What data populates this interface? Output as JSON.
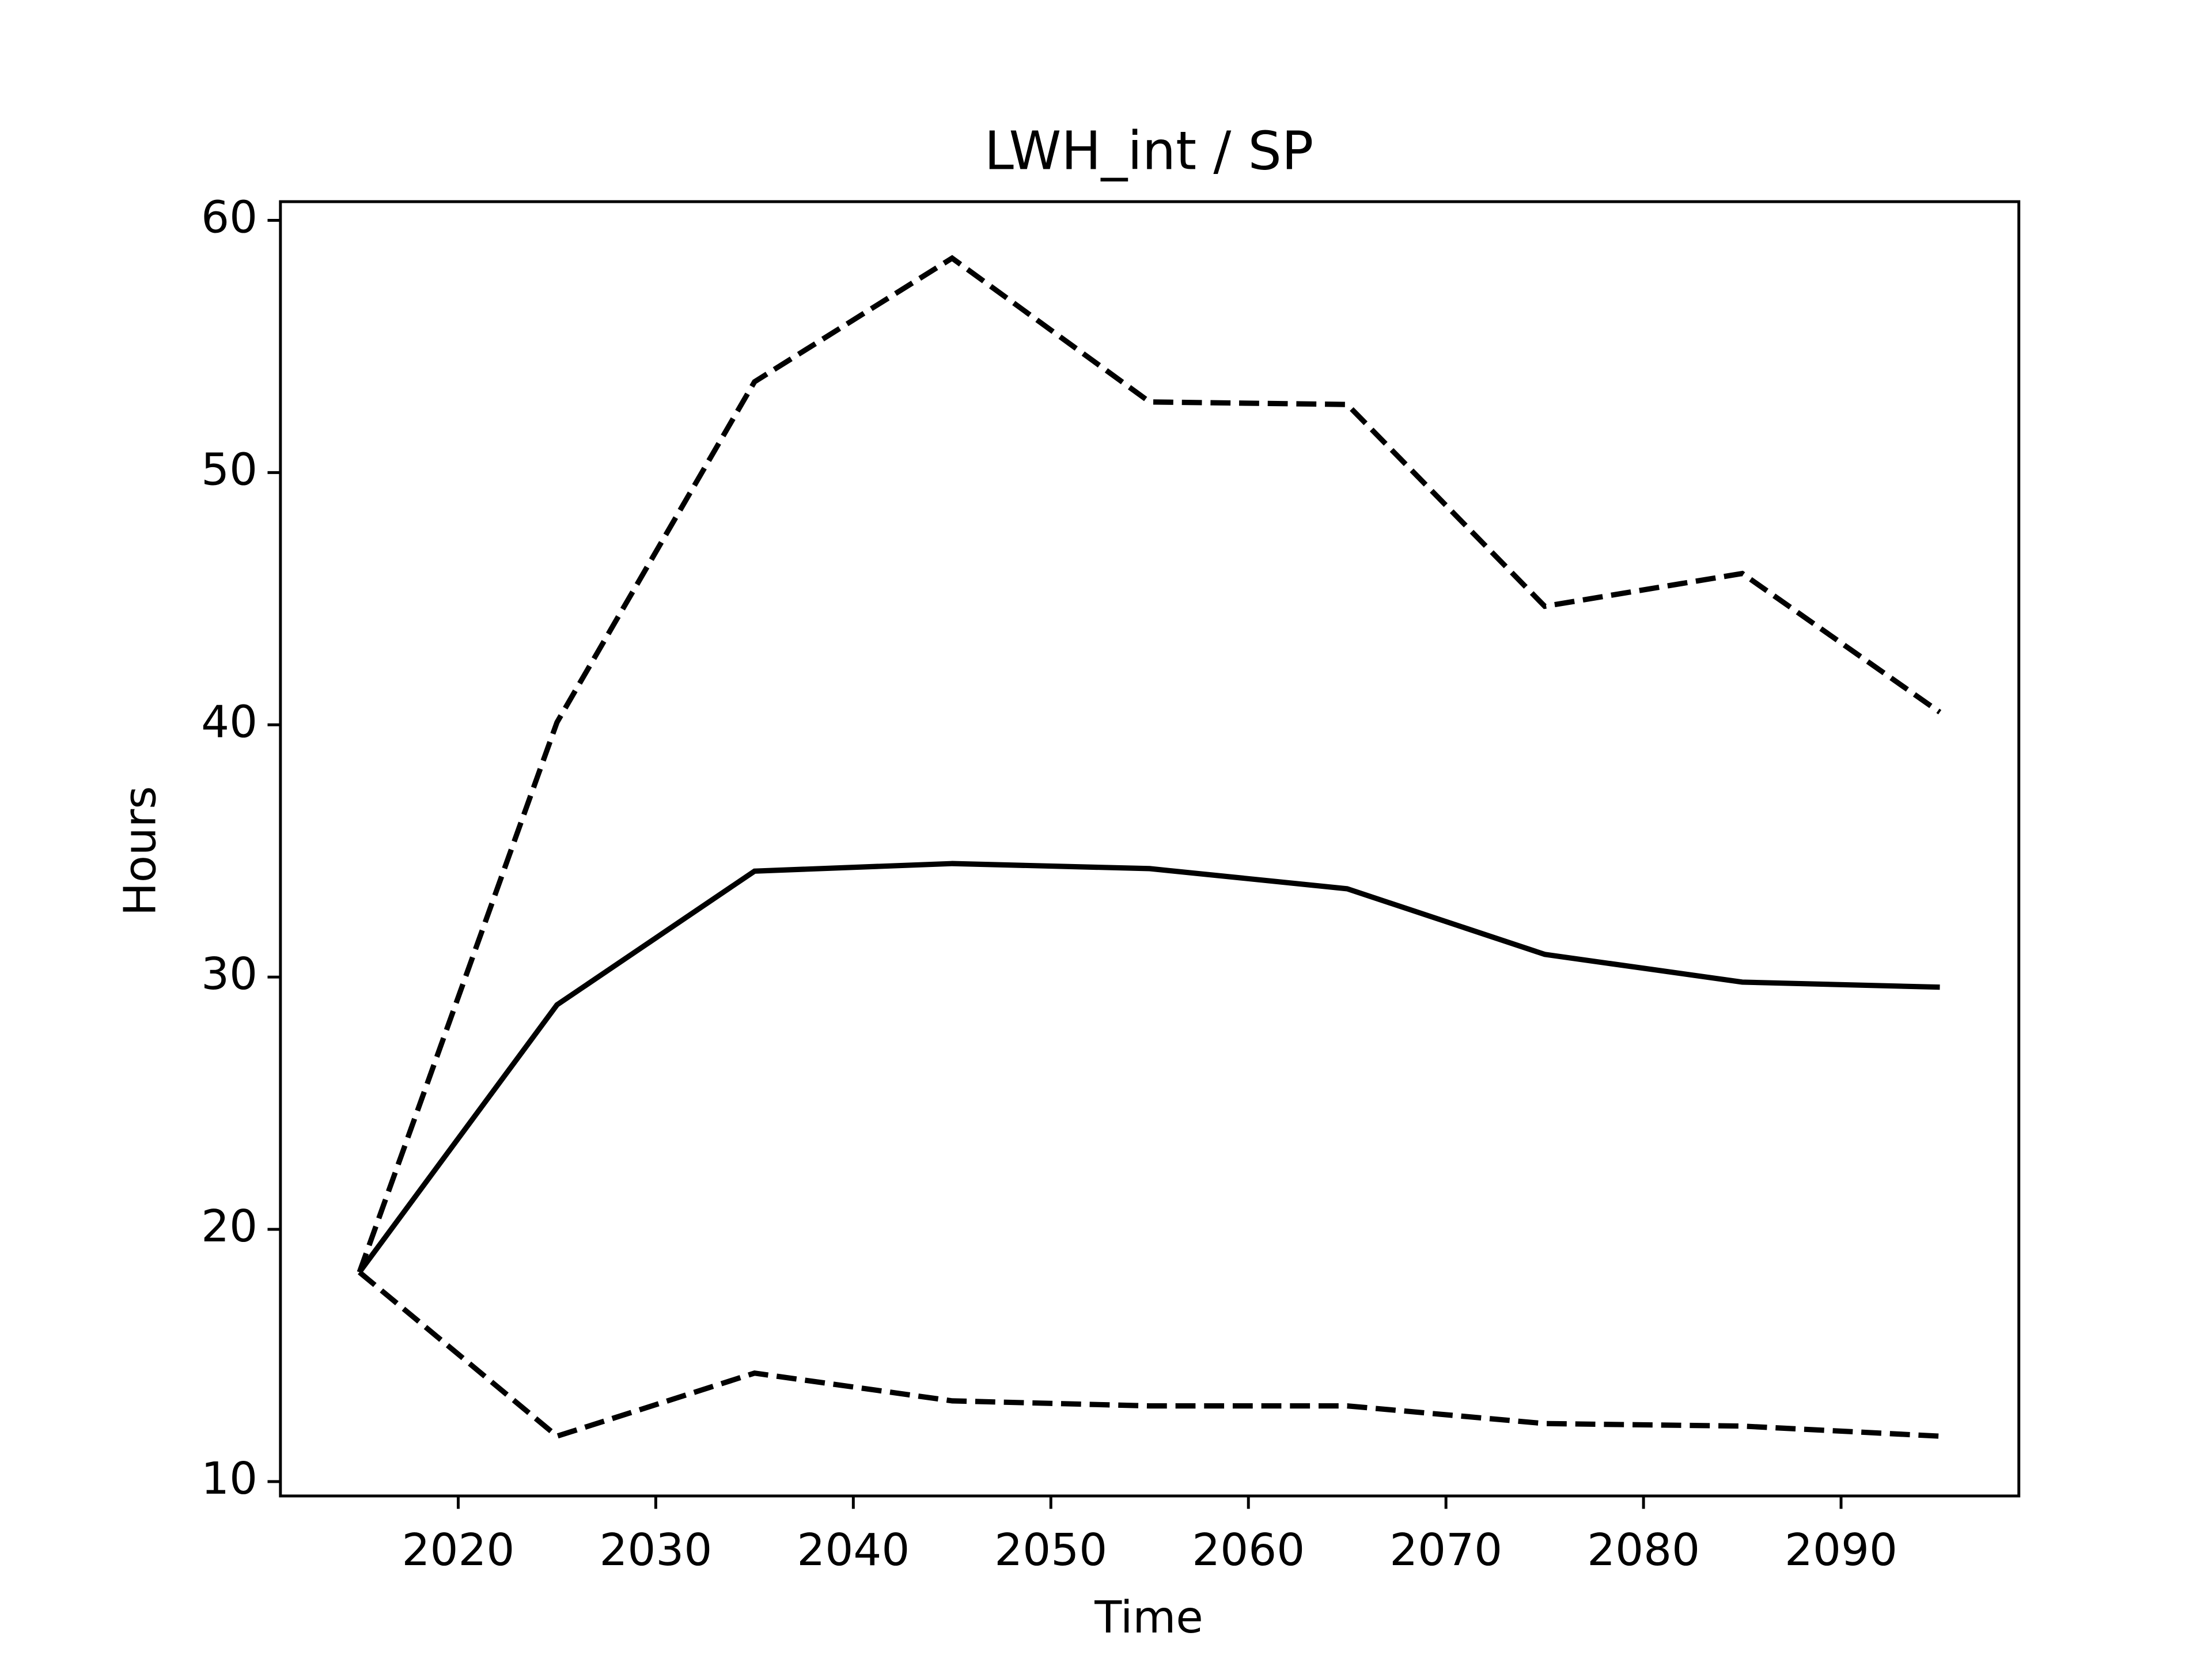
{
  "chart_data": {
    "type": "line",
    "title": "LWH_int / SP",
    "xlabel": "Time",
    "ylabel": "Hours",
    "x": [
      2015,
      2025,
      2035,
      2045,
      2055,
      2065,
      2075,
      2085,
      2095
    ],
    "series": [
      {
        "color": "#000000",
        "linestyle": "dashed",
        "values": [
          18.3,
          40.1,
          53.6,
          58.5,
          52.8,
          52.7,
          44.7,
          46.0,
          40.5
        ]
      },
      {
        "color": "#000000",
        "linestyle": "solid",
        "values": [
          18.3,
          28.9,
          34.2,
          34.5,
          34.3,
          33.5,
          30.9,
          29.8,
          29.6
        ]
      },
      {
        "color": "#000000",
        "linestyle": "dashed",
        "values": [
          18.3,
          11.8,
          14.3,
          13.2,
          13.0,
          13.0,
          12.3,
          12.2,
          11.8
        ]
      }
    ],
    "xlim": [
      2011,
      2099
    ],
    "ylim": [
      9.43,
      60.74
    ],
    "xticks": [
      2020,
      2030,
      2040,
      2050,
      2060,
      2070,
      2080,
      2090
    ],
    "yticks": [
      10,
      20,
      30,
      40,
      50,
      60
    ],
    "grid": false
  }
}
